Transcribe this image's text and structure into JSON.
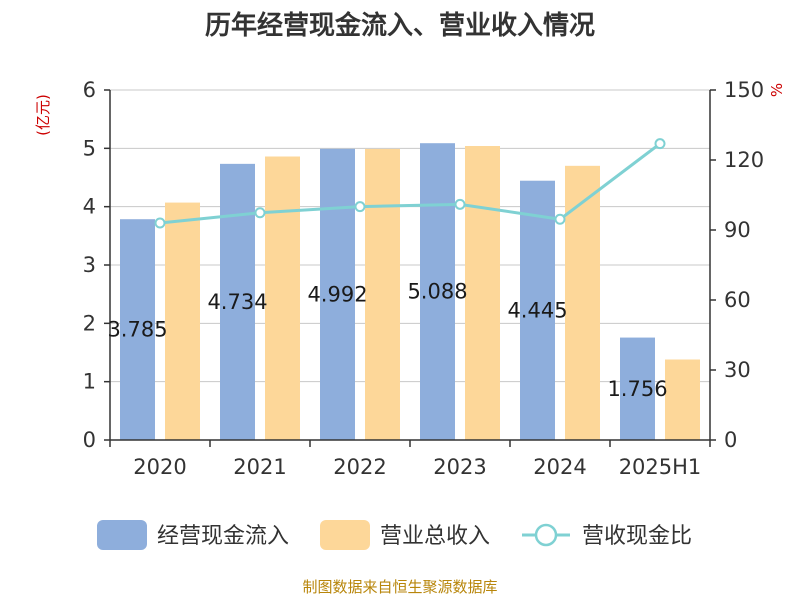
{
  "chart_data": {
    "type": "bar",
    "title": "历年经营现金流入、营业收入情况",
    "categories": [
      "2020",
      "2021",
      "2022",
      "2023",
      "2024",
      "2025H1"
    ],
    "series": [
      {
        "name": "经营现金流入",
        "type": "bar",
        "axis": "left",
        "color": "#8eaedc",
        "values": [
          3.785,
          4.734,
          4.992,
          5.088,
          4.445,
          1.756
        ],
        "labels": [
          "3.785",
          "4.734",
          "4.992",
          "5.088",
          "4.445",
          "1.756"
        ]
      },
      {
        "name": "营业总收入",
        "type": "bar",
        "axis": "left",
        "color": "#fdd799",
        "values": [
          4.07,
          4.86,
          4.99,
          5.04,
          4.7,
          1.38
        ]
      },
      {
        "name": "营收现金比",
        "type": "line",
        "axis": "right",
        "color": "#7fd1d3",
        "values": [
          93,
          97.4,
          100,
          101,
          94.6,
          127
        ]
      }
    ],
    "y_left": {
      "unit": "(亿元)",
      "ylim": [
        0,
        6
      ],
      "ticks": [
        "0",
        "1",
        "2",
        "3",
        "4",
        "5",
        "6"
      ]
    },
    "y_right": {
      "unit": "%",
      "ylim": [
        0,
        150
      ],
      "ticks": [
        "0",
        "30",
        "60",
        "90",
        "120",
        "150"
      ]
    },
    "grid": true,
    "legend": "bottom"
  },
  "source": "制图数据来自恒生聚源数据库"
}
